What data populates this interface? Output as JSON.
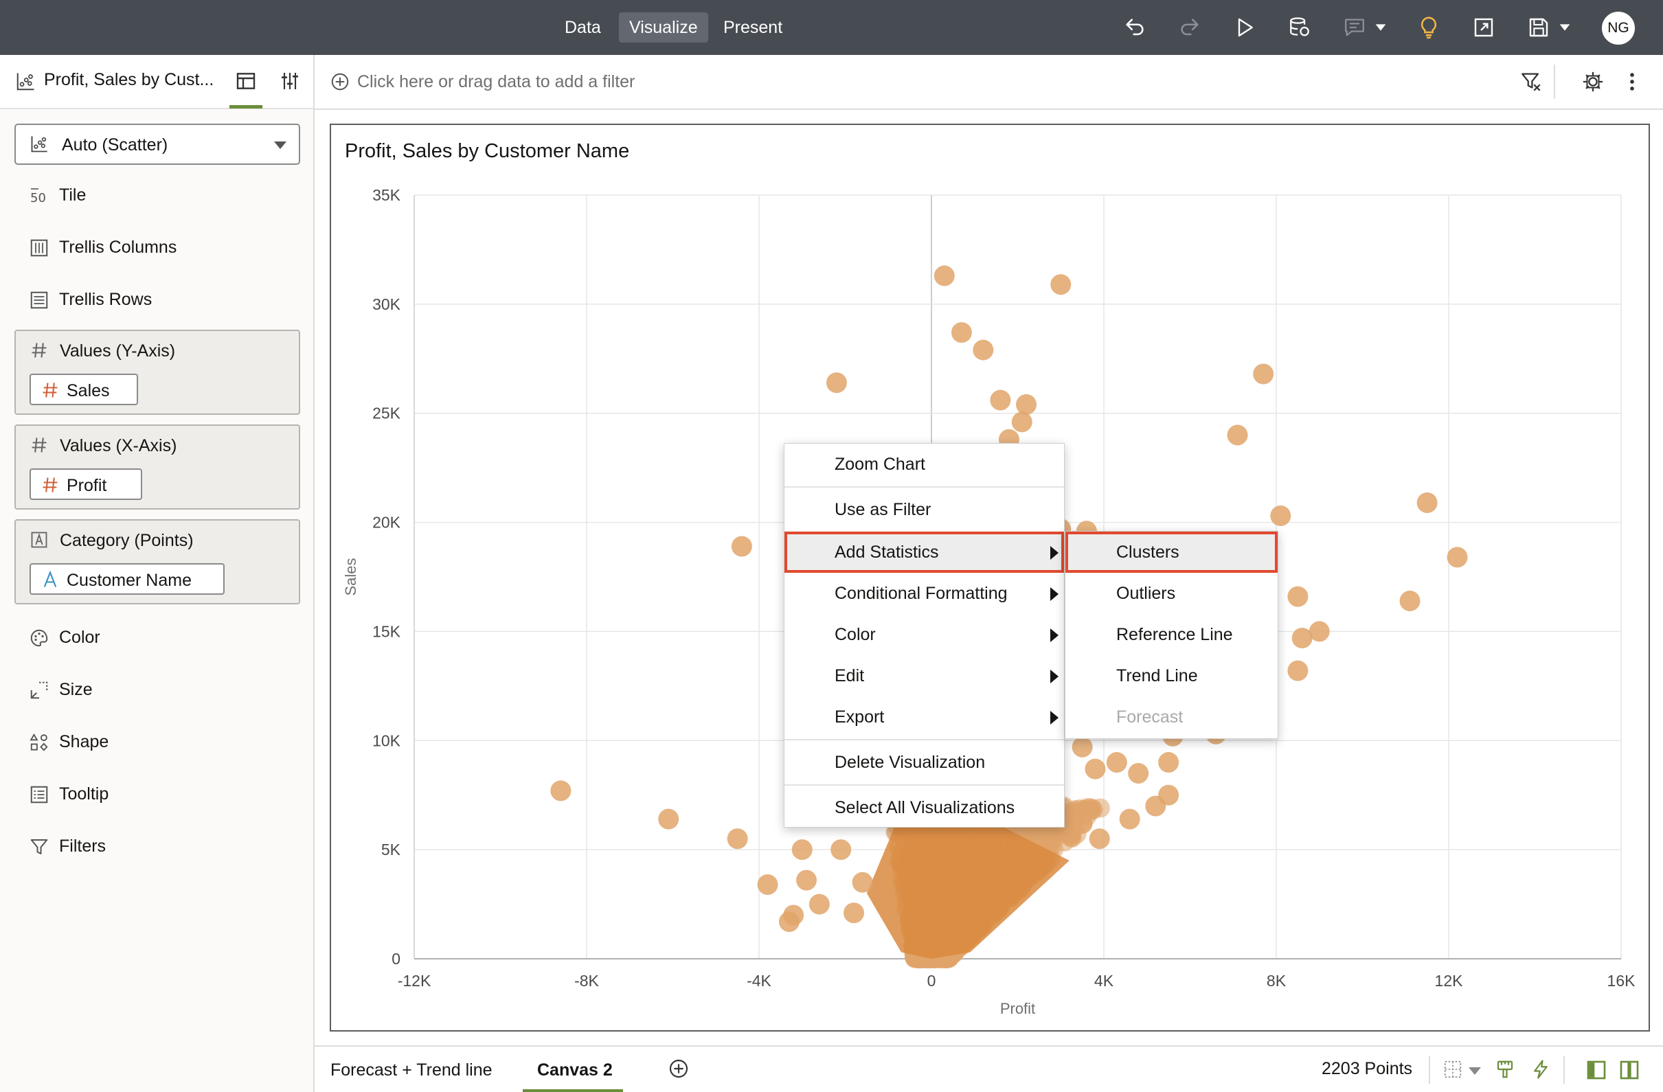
{
  "topbar": {
    "tabs": [
      {
        "label": "Data",
        "active": false
      },
      {
        "label": "Visualize",
        "active": true
      },
      {
        "label": "Present",
        "active": false
      }
    ],
    "icons": [
      "undo-icon",
      "redo-icon",
      "play-icon",
      "data-refresh-icon",
      "comment-icon",
      "chevron-down-icon",
      "insight-lightbulb-icon",
      "export-icon",
      "save-icon",
      "chevron-down-icon"
    ],
    "avatar": "NG",
    "colors": {
      "background": "#474c52",
      "active_tab": "#636870",
      "lightbulb": "#f2b544"
    }
  },
  "left_panel": {
    "title": "Profit, Sales by Cust...",
    "vis_type": "Auto (Scatter)",
    "rows_top": [
      {
        "label": "Tile",
        "icon": "tile-icon"
      },
      {
        "label": "Trellis Columns",
        "icon": "trellis-columns-icon"
      },
      {
        "label": "Trellis Rows",
        "icon": "trellis-rows-icon"
      }
    ],
    "y_axis": {
      "label": "Values (Y-Axis)",
      "item": "Sales"
    },
    "x_axis": {
      "label": "Values (X-Axis)",
      "item": "Profit"
    },
    "category": {
      "label": "Category (Points)",
      "item": "Customer Name"
    },
    "rows_bottom": [
      {
        "label": "Color",
        "icon": "palette-icon"
      },
      {
        "label": "Size",
        "icon": "size-icon"
      },
      {
        "label": "Shape",
        "icon": "shape-icon"
      },
      {
        "label": "Tooltip",
        "icon": "tooltip-icon"
      },
      {
        "label": "Filters",
        "icon": "filter-icon"
      }
    ],
    "colors": {
      "accent": "#6b8e3a",
      "measure_hash": "#d0603a"
    }
  },
  "filter_bar": {
    "placeholder": "Click here or drag data to add a filter"
  },
  "visualization": {
    "title": "Profit, Sales by Customer Name"
  },
  "chart_data": {
    "type": "scatter",
    "title": "Profit, Sales by Customer Name",
    "xlabel": "Profit",
    "ylabel": "Sales",
    "xlim": [
      -12000,
      16000
    ],
    "ylim": [
      0,
      35000
    ],
    "x_ticks": [
      "-12K",
      "-8K",
      "-4K",
      "0",
      "4K",
      "8K",
      "12K",
      "16K"
    ],
    "x_tick_values": [
      -12000,
      -8000,
      -4000,
      0,
      4000,
      8000,
      12000,
      16000
    ],
    "y_ticks": [
      "0",
      "5K",
      "10K",
      "15K",
      "20K",
      "25K",
      "30K",
      "35K"
    ],
    "y_tick_values": [
      0,
      5000,
      10000,
      15000,
      20000,
      25000,
      30000,
      35000
    ],
    "grid": true,
    "point_color": "#e0a46a",
    "point_count_label": "2203 Points",
    "outliers": [
      [
        -8600,
        7700
      ],
      [
        -6100,
        6400
      ],
      [
        -4400,
        18900
      ],
      [
        -4500,
        5500
      ],
      [
        -3800,
        3400
      ],
      [
        -3300,
        1700
      ],
      [
        -3200,
        2000
      ],
      [
        -3000,
        5000
      ],
      [
        -2900,
        3600
      ],
      [
        -2600,
        2500
      ],
      [
        -2200,
        26400
      ],
      [
        -2100,
        5000
      ],
      [
        -1600,
        3500
      ],
      [
        -1800,
        2100
      ],
      [
        300,
        31300
      ],
      [
        700,
        28700
      ],
      [
        1200,
        27900
      ],
      [
        1600,
        25600
      ],
      [
        2200,
        25400
      ],
      [
        2100,
        24600
      ],
      [
        1800,
        23800
      ],
      [
        3000,
        30900
      ],
      [
        3000,
        19700
      ],
      [
        3600,
        19600
      ],
      [
        7100,
        24000
      ],
      [
        7700,
        26800
      ],
      [
        8100,
        20300
      ],
      [
        8500,
        16600
      ],
      [
        8600,
        14700
      ],
      [
        9000,
        15000
      ],
      [
        8500,
        13200
      ],
      [
        11100,
        16400
      ],
      [
        11500,
        20900
      ],
      [
        12200,
        18400
      ],
      [
        6600,
        10300
      ],
      [
        5000,
        11400
      ],
      [
        3500,
        9700
      ],
      [
        4300,
        9000
      ],
      [
        3800,
        8700
      ],
      [
        4800,
        8500
      ],
      [
        5500,
        7500
      ],
      [
        4600,
        6400
      ],
      [
        3500,
        6200
      ],
      [
        5600,
        10200
      ],
      [
        5500,
        9000
      ],
      [
        5200,
        7000
      ],
      [
        2200,
        11300
      ],
      [
        1500,
        9200
      ],
      [
        2600,
        7400
      ],
      [
        3900,
        5500
      ]
    ],
    "dense_cluster": {
      "note": "approximately 2150 overlapping points concentrated near Profit 0-4K, Sales 0-7K",
      "profit_range": [
        -2000,
        4000
      ],
      "sales_range": [
        0,
        7000
      ]
    }
  },
  "context_menu": {
    "items": [
      {
        "label": "Zoom Chart",
        "submenu": false
      },
      {
        "label": "Use as Filter",
        "submenu": false
      },
      {
        "label": "Add Statistics",
        "submenu": true,
        "highlighted": true
      },
      {
        "label": "Conditional Formatting",
        "submenu": true
      },
      {
        "label": "Color",
        "submenu": true
      },
      {
        "label": "Edit",
        "submenu": true
      },
      {
        "label": "Export",
        "submenu": true
      },
      {
        "label": "Delete Visualization",
        "submenu": false
      },
      {
        "label": "Select All Visualizations",
        "submenu": false
      }
    ],
    "highlight_color": "#e04a2f"
  },
  "submenu": {
    "items": [
      {
        "label": "Clusters",
        "highlighted": true,
        "disabled": false
      },
      {
        "label": "Outliers",
        "highlighted": false,
        "disabled": false
      },
      {
        "label": "Reference Line",
        "highlighted": false,
        "disabled": false
      },
      {
        "label": "Trend Line",
        "highlighted": false,
        "disabled": false
      },
      {
        "label": "Forecast",
        "highlighted": false,
        "disabled": true
      }
    ]
  },
  "bottom_bar": {
    "tabs": [
      {
        "label": "Forecast + Trend line",
        "active": false
      },
      {
        "label": "Canvas 2",
        "active": true
      }
    ],
    "points_label": "2203 Points"
  }
}
